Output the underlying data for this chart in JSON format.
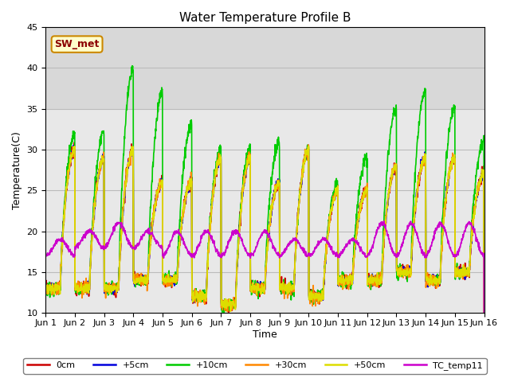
{
  "title": "Water Temperature Profile B",
  "xlabel": "Time",
  "ylabel": "Temperature(C)",
  "ylim": [
    10,
    45
  ],
  "xlim": [
    0,
    15
  ],
  "series_colors": [
    "#cc0000",
    "#0000dd",
    "#00cc00",
    "#ff8800",
    "#dddd00",
    "#cc00cc"
  ],
  "series_names": [
    "0cm",
    "+5cm",
    "+10cm",
    "+30cm",
    "+50cm",
    "TC_temp11"
  ],
  "xtick_labels": [
    "Jun 1",
    "Jun 2",
    "Jun 3",
    "Jun 4",
    "Jun 5",
    "Jun 6",
    "Jun 7",
    "Jun 8",
    "Jun 9",
    "Jun 10",
    "Jun 11",
    "Jun 12",
    "Jun 13",
    "Jun 14",
    "Jun 15",
    "Jun 16"
  ],
  "xtick_positions": [
    0,
    1,
    2,
    3,
    4,
    5,
    6,
    7,
    8,
    9,
    10,
    11,
    12,
    13,
    14,
    15
  ],
  "annotation_text": "SW_met",
  "shaded_region_lo": 35,
  "shaded_region_hi": 45,
  "grid_color": "#bbbbbb",
  "bg_color": "#e8e8e8",
  "shaded_color": "#d8d8d8"
}
